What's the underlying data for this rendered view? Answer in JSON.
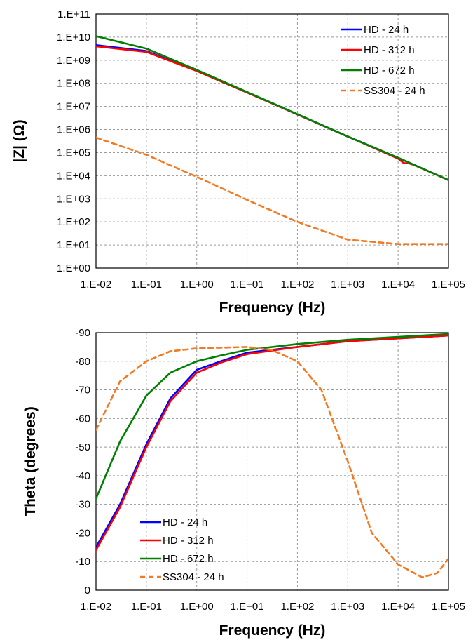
{
  "chart_data": [
    {
      "type": "line",
      "title": "",
      "xlabel": "Frequency (Hz)",
      "ylabel": "|Z| (Ω)",
      "xscale": "log",
      "yscale": "log",
      "xlim": [
        0.01,
        100000
      ],
      "ylim": [
        1,
        100000000000
      ],
      "x_ticks": [
        "1.E-02",
        "1.E-01",
        "1.E+00",
        "1.E+01",
        "1.E+02",
        "1.E+03",
        "1.E+04",
        "1.E+05"
      ],
      "y_ticks": [
        "1.E+00",
        "1.E+01",
        "1.E+02",
        "1.E+03",
        "1.E+04",
        "1.E+05",
        "1.E+06",
        "1.E+07",
        "1.E+08",
        "1.E+09",
        "1.E+10",
        "1.E+11"
      ],
      "grid": true,
      "legend_position": "top-right",
      "series": [
        {
          "name": "HD - 24 h",
          "color": "#0000ff",
          "dash": "solid",
          "points": [
            [
              0.01,
              4500000000
            ],
            [
              0.1,
              2500000000
            ],
            [
              1,
              350000000
            ],
            [
              10,
              40000000
            ],
            [
              100,
              4500000
            ],
            [
              1000,
              500000
            ],
            [
              10000,
              60000
            ],
            [
              100000,
              6500
            ]
          ]
        },
        {
          "name": "HD - 312 h",
          "color": "#ff0000",
          "dash": "solid",
          "points": [
            [
              0.01,
              4000000000
            ],
            [
              0.1,
              2300000000
            ],
            [
              1,
              340000000
            ],
            [
              10,
              40000000
            ],
            [
              100,
              4500000
            ],
            [
              1000,
              500000
            ],
            [
              10000,
              55000
            ],
            [
              13000,
              35000
            ],
            [
              16000,
              35000
            ],
            [
              20000,
              30000
            ],
            [
              100000,
              6500
            ]
          ]
        },
        {
          "name": "HD - 672 h",
          "color": "#008000",
          "dash": "solid",
          "points": [
            [
              0.01,
              11000000000
            ],
            [
              0.1,
              3200000000
            ],
            [
              1,
              380000000
            ],
            [
              10,
              42000000
            ],
            [
              100,
              4600000
            ],
            [
              1000,
              500000
            ],
            [
              10000,
              60000
            ],
            [
              100000,
              6500
            ]
          ]
        },
        {
          "name": "SS304 - 24 h",
          "color": "#f47920",
          "dash": "dashed",
          "points": [
            [
              0.01,
              450000
            ],
            [
              0.1,
              80000
            ],
            [
              1,
              9000
            ],
            [
              10,
              900
            ],
            [
              100,
              100
            ],
            [
              1000,
              17
            ],
            [
              10000,
              11
            ],
            [
              100000,
              11
            ]
          ]
        }
      ]
    },
    {
      "type": "line",
      "title": "",
      "xlabel": "Frequency (Hz)",
      "ylabel": "Theta (degrees)",
      "xscale": "log",
      "xlim": [
        0.01,
        100000
      ],
      "ylim": [
        0,
        -90
      ],
      "x_ticks": [
        "1.E-02",
        "1.E-01",
        "1.E+00",
        "1.E+01",
        "1.E+02",
        "1.E+03",
        "1.E+04",
        "1.E+05"
      ],
      "y_ticks": [
        "0",
        "-10",
        "-20",
        "-30",
        "-40",
        "-50",
        "-60",
        "-70",
        "-80",
        "-90"
      ],
      "grid": true,
      "legend_position": "bottom-left",
      "series": [
        {
          "name": "HD - 24 h",
          "color": "#0000ff",
          "dash": "solid",
          "points": [
            [
              0.01,
              -15
            ],
            [
              0.03,
              -30
            ],
            [
              0.1,
              -51
            ],
            [
              0.3,
              -67
            ],
            [
              1,
              -77
            ],
            [
              3,
              -80
            ],
            [
              10,
              -83
            ],
            [
              100,
              -85
            ],
            [
              1000,
              -87
            ],
            [
              10000,
              -88
            ],
            [
              100000,
              -89
            ]
          ]
        },
        {
          "name": "HD - 312 h",
          "color": "#ff0000",
          "dash": "solid",
          "points": [
            [
              0.01,
              -14
            ],
            [
              0.03,
              -29
            ],
            [
              0.1,
              -50
            ],
            [
              0.3,
              -66
            ],
            [
              1,
              -76
            ],
            [
              3,
              -79.5
            ],
            [
              10,
              -82.5
            ],
            [
              100,
              -85
            ],
            [
              1000,
              -87
            ],
            [
              10000,
              -88
            ],
            [
              100000,
              -89
            ]
          ]
        },
        {
          "name": "HD - 672 h",
          "color": "#008000",
          "dash": "solid",
          "points": [
            [
              0.01,
              -32
            ],
            [
              0.03,
              -52
            ],
            [
              0.1,
              -68
            ],
            [
              0.3,
              -76
            ],
            [
              1,
              -80
            ],
            [
              3,
              -82
            ],
            [
              10,
              -84
            ],
            [
              100,
              -86
            ],
            [
              1000,
              -87.5
            ],
            [
              10000,
              -88.5
            ],
            [
              100000,
              -89.5
            ]
          ]
        },
        {
          "name": "SS304 - 24 h",
          "color": "#f47920",
          "dash": "dashed",
          "points": [
            [
              0.01,
              -56
            ],
            [
              0.03,
              -73
            ],
            [
              0.1,
              -80
            ],
            [
              0.3,
              -83.5
            ],
            [
              1,
              -84.5
            ],
            [
              10,
              -85
            ],
            [
              30,
              -84
            ],
            [
              100,
              -80
            ],
            [
              300,
              -70
            ],
            [
              1000,
              -45
            ],
            [
              3000,
              -20
            ],
            [
              10000,
              -9
            ],
            [
              30000,
              -4.5
            ],
            [
              60000,
              -6
            ],
            [
              100000,
              -11
            ]
          ]
        }
      ]
    }
  ]
}
